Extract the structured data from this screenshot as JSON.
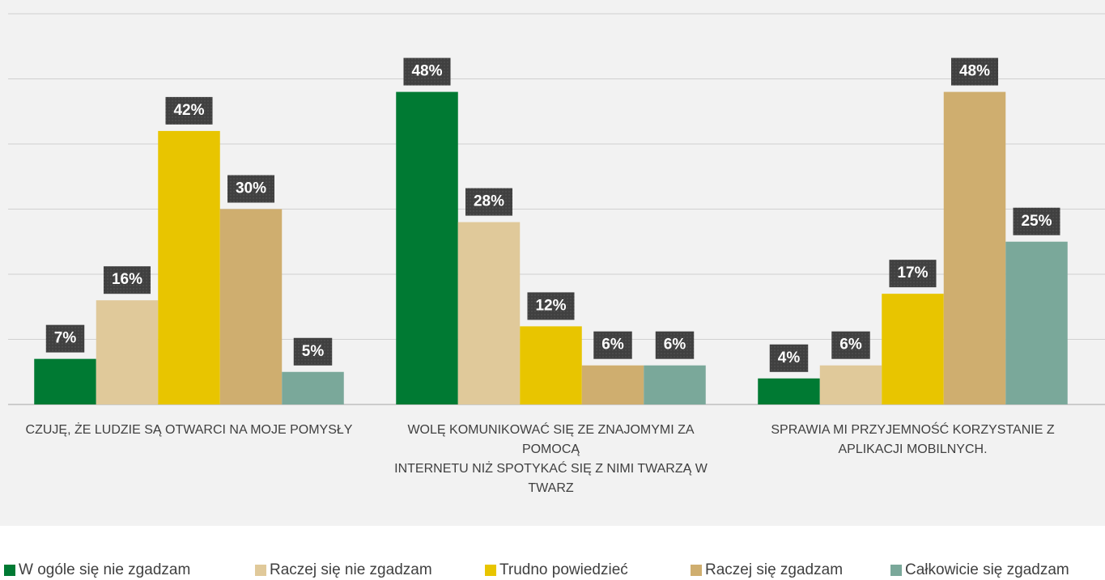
{
  "chart_data": {
    "type": "bar",
    "categories": [
      "CZUJĘ, ŻE LUDZIE SĄ OTWARCI NA MOJE POMYSŁY",
      "WOLĘ KOMUNIKOWAĆ SIĘ ZE ZNAJOMYMI ZA POMOCĄ\nINTERNETU NIŻ SPOTYKAĆ SIĘ Z NIMI TWARZĄ W TWARZ",
      "SPRAWIA MI PRZYJEMNOŚĆ KORZYSTANIE Z APLIKACJI MOBILNYCH."
    ],
    "series": [
      {
        "name": "W ogóle się nie zgadzam",
        "color": "#007a33",
        "values": [
          7,
          48,
          4
        ],
        "value_labels": [
          "7%",
          "48%",
          "4%"
        ]
      },
      {
        "name": "Raczej się nie zgadzam",
        "color": "#e0c99a",
        "values": [
          16,
          28,
          6
        ],
        "value_labels": [
          "16%",
          "28%",
          "6%"
        ]
      },
      {
        "name": "Trudno powiedzieć",
        "color": "#e8c500",
        "values": [
          42,
          12,
          17
        ],
        "value_labels": [
          "42%",
          "12%",
          "17%"
        ]
      },
      {
        "name": "Raczej się zgadzam",
        "color": "#cfae6f",
        "values": [
          30,
          6,
          48
        ],
        "value_labels": [
          "30%",
          "6%",
          "48%"
        ]
      },
      {
        "name": "Całkowicie się zgadzam",
        "color": "#7aa89a",
        "values": [
          5,
          6,
          25
        ],
        "value_labels": [
          "5%",
          "6%",
          "25%"
        ]
      }
    ],
    "ylim": [
      0,
      60
    ],
    "yticks": [
      0,
      10,
      20,
      30,
      40,
      50,
      60
    ],
    "grid": true,
    "legend": "bottom"
  }
}
